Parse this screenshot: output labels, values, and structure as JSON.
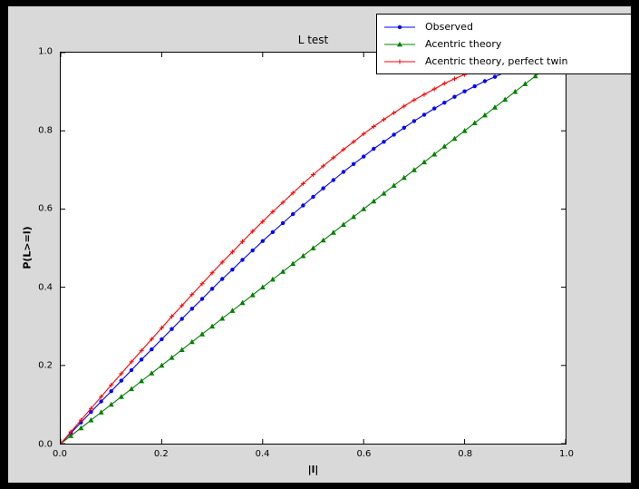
{
  "window": {
    "background": "#000000",
    "figure_background": "#d9d9d9",
    "plot_background": "#ffffff"
  },
  "chart_data": {
    "type": "line",
    "title": "L test",
    "xlabel": "|l|",
    "ylabel": "P(L>=l)",
    "xlim": [
      0,
      1
    ],
    "ylim": [
      0,
      1
    ],
    "grid": false,
    "legend_position": "upper right",
    "xticks": [
      0,
      0.2,
      0.4,
      0.6,
      0.8,
      1
    ],
    "xtick_labels": [
      "0.0",
      "0.2",
      "0.4",
      "0.6",
      "0.8",
      "1.0"
    ],
    "yticks": [
      0,
      0.2,
      0.4,
      0.6,
      0.8,
      1
    ],
    "ytick_labels": [
      "0.0",
      "0.2",
      "0.4",
      "0.6",
      "0.8",
      "1.0"
    ],
    "series": [
      {
        "name": "Observed",
        "color": "#0000ff",
        "marker": "circle",
        "x": [
          0,
          0.02,
          0.04,
          0.06,
          0.08,
          0.1,
          0.12,
          0.14,
          0.16,
          0.18,
          0.2,
          0.22,
          0.24,
          0.26,
          0.28,
          0.3,
          0.32,
          0.34,
          0.36,
          0.38,
          0.4,
          0.42,
          0.44,
          0.46,
          0.48,
          0.5,
          0.52,
          0.54,
          0.56,
          0.58,
          0.6,
          0.62,
          0.64,
          0.66,
          0.68,
          0.7,
          0.72,
          0.74,
          0.76,
          0.78,
          0.8,
          0.82,
          0.84,
          0.86,
          0.88
        ],
        "y": [
          0,
          0.027,
          0.054,
          0.081,
          0.108,
          0.134,
          0.161,
          0.188,
          0.215,
          0.241,
          0.267,
          0.293,
          0.319,
          0.345,
          0.37,
          0.396,
          0.421,
          0.445,
          0.47,
          0.494,
          0.518,
          0.541,
          0.564,
          0.587,
          0.609,
          0.631,
          0.653,
          0.674,
          0.695,
          0.715,
          0.734,
          0.754,
          0.772,
          0.79,
          0.808,
          0.825,
          0.841,
          0.857,
          0.872,
          0.887,
          0.901,
          0.914,
          0.927,
          0.938,
          0.95
        ]
      },
      {
        "name": "Acentric theory",
        "color": "#008000",
        "marker": "triangle",
        "x": [
          0,
          0.02,
          0.04,
          0.06,
          0.08,
          0.1,
          0.12,
          0.14,
          0.16,
          0.18,
          0.2,
          0.22,
          0.24,
          0.26,
          0.28,
          0.3,
          0.32,
          0.34,
          0.36,
          0.38,
          0.4,
          0.42,
          0.44,
          0.46,
          0.48,
          0.5,
          0.52,
          0.54,
          0.56,
          0.58,
          0.6,
          0.62,
          0.64,
          0.66,
          0.68,
          0.7,
          0.72,
          0.74,
          0.76,
          0.78,
          0.8,
          0.82,
          0.84,
          0.86,
          0.88,
          0.9,
          0.92,
          0.94,
          0.96
        ],
        "y": [
          0,
          0.02,
          0.04,
          0.06,
          0.08,
          0.1,
          0.12,
          0.14,
          0.16,
          0.18,
          0.2,
          0.22,
          0.24,
          0.26,
          0.28,
          0.3,
          0.32,
          0.34,
          0.36,
          0.38,
          0.4,
          0.42,
          0.44,
          0.46,
          0.48,
          0.5,
          0.52,
          0.54,
          0.56,
          0.58,
          0.6,
          0.62,
          0.64,
          0.66,
          0.68,
          0.7,
          0.72,
          0.74,
          0.76,
          0.78,
          0.8,
          0.82,
          0.84,
          0.86,
          0.88,
          0.9,
          0.92,
          0.94,
          0.96
        ]
      },
      {
        "name": "Acentric theory, perfect twin",
        "color": "#ff0000",
        "marker": "plus",
        "x": [
          0,
          0.02,
          0.04,
          0.06,
          0.08,
          0.1,
          0.12,
          0.14,
          0.16,
          0.18,
          0.2,
          0.22,
          0.24,
          0.26,
          0.28,
          0.3,
          0.32,
          0.34,
          0.36,
          0.38,
          0.4,
          0.42,
          0.44,
          0.46,
          0.48,
          0.5,
          0.52,
          0.54,
          0.56,
          0.58,
          0.6,
          0.62,
          0.64,
          0.66,
          0.68,
          0.7,
          0.72,
          0.74,
          0.76,
          0.78,
          0.8,
          0.82,
          0.84,
          0.86
        ],
        "y": [
          0,
          0.03,
          0.06,
          0.09,
          0.12,
          0.15,
          0.179,
          0.209,
          0.238,
          0.267,
          0.296,
          0.325,
          0.353,
          0.381,
          0.409,
          0.437,
          0.464,
          0.49,
          0.517,
          0.543,
          0.568,
          0.593,
          0.617,
          0.641,
          0.665,
          0.688,
          0.71,
          0.731,
          0.752,
          0.772,
          0.792,
          0.811,
          0.829,
          0.846,
          0.863,
          0.879,
          0.893,
          0.907,
          0.921,
          0.933,
          0.944,
          0.954,
          0.964,
          0.972
        ]
      }
    ]
  }
}
